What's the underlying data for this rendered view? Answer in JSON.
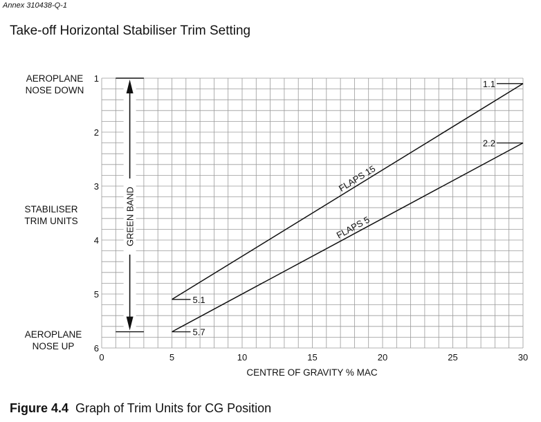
{
  "annex": "Annex 310438-Q-1",
  "title": "Take-off Horizontal Stabiliser Trim Setting",
  "caption": {
    "figure": "Figure 4.4",
    "text": "Graph of Trim Units for CG Position"
  },
  "side_labels": {
    "top": [
      "AEROPLANE",
      "NOSE DOWN"
    ],
    "middle": [
      "STABILISER",
      "TRIM UNITS"
    ],
    "bottom": [
      "AEROPLANE",
      "NOSE UP"
    ]
  },
  "green_band_label": "GREEN BAND",
  "chart_data": {
    "type": "line",
    "xlabel": "CENTRE OF GRAVITY  % MAC",
    "ylabel": "",
    "xlim": [
      0,
      30
    ],
    "ylim": [
      1,
      6
    ],
    "y_inverted": true,
    "x_ticks": [
      0,
      5,
      10,
      15,
      20,
      25,
      30
    ],
    "y_ticks": [
      1,
      2,
      3,
      4,
      5,
      6
    ],
    "grid": true,
    "green_band": [
      1,
      5.7
    ],
    "series": [
      {
        "name": "FLAPS 15",
        "x": [
          5,
          30
        ],
        "y": [
          5.1,
          1.1
        ],
        "start_label": "5.1",
        "end_label": "1.1"
      },
      {
        "name": "FLAPS 5",
        "x": [
          5,
          30
        ],
        "y": [
          5.7,
          2.2
        ],
        "start_label": "5.7",
        "end_label": "2.2"
      }
    ]
  }
}
